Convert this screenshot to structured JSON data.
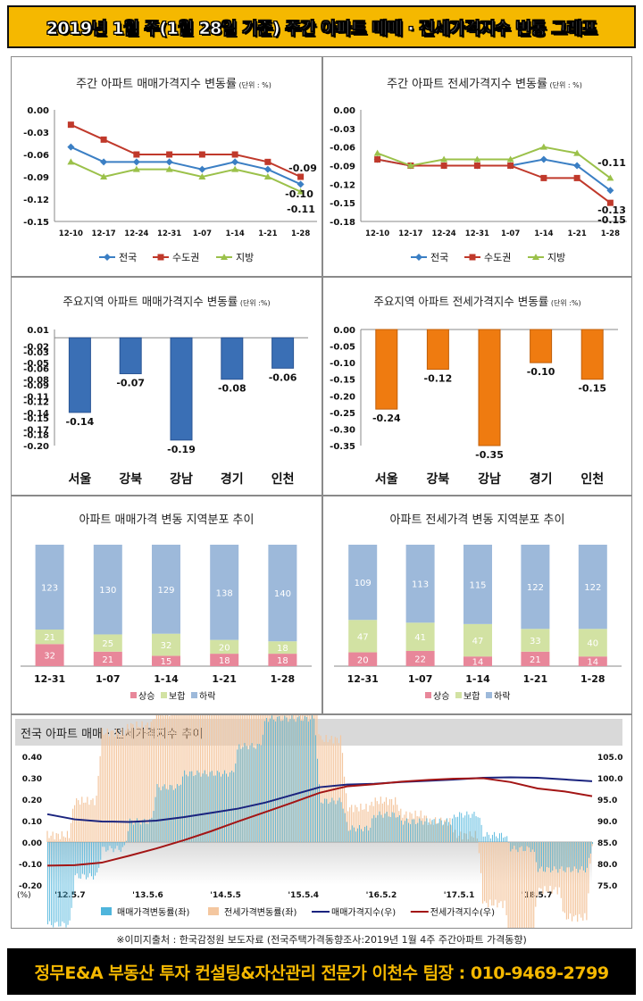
{
  "header": {
    "title": "2019년 1월 주(1월 28일 기준) 주간 아파트 매매 · 전세가격지수 변동 그래프"
  },
  "source_note": "※이미지출처 : 한국감정원 보도자료 (전국주택가격동향조사:2019년 1월  4주 주간아파트 가격동향)",
  "footer": {
    "text": "정무E&A 부동산 투자 컨설팅&자산관리 전문가 이천수 팀장 : 010-9469-2799"
  },
  "colors": {
    "jeonguk": "#3b7fc4",
    "sudo": "#c0392b",
    "jibang": "#9bc14a",
    "blue_bar": "#3a6fb5",
    "orange_bar": "#ef7b10",
    "rise": "#e8879a",
    "flat": "#d2e2a3",
    "fall": "#9db9da"
  },
  "chart_data": [
    {
      "id": "weekly_sale",
      "type": "line",
      "title": "주간 아파트 매매가격지수 변동률",
      "unit_note": "(단위 : %)",
      "categories": [
        "12-10",
        "12-17",
        "12-24",
        "12-31",
        "1-07",
        "1-14",
        "1-21",
        "1-28"
      ],
      "ylim": [
        -0.15,
        0.0
      ],
      "yticks": [
        "0.00",
        "-0.03",
        "-0.06",
        "-0.09",
        "-0.12",
        "-0.15"
      ],
      "series": [
        {
          "name": "전국",
          "values": [
            -0.05,
            -0.07,
            -0.07,
            -0.07,
            -0.08,
            -0.07,
            -0.08,
            -0.1
          ]
        },
        {
          "name": "수도권",
          "values": [
            -0.02,
            -0.04,
            -0.06,
            -0.06,
            -0.06,
            -0.06,
            -0.07,
            -0.09
          ]
        },
        {
          "name": "지방",
          "values": [
            -0.07,
            -0.09,
            -0.08,
            -0.08,
            -0.09,
            -0.08,
            -0.09,
            -0.11
          ]
        }
      ],
      "end_labels": [
        "-0.09",
        "-0.10",
        "-0.11"
      ]
    },
    {
      "id": "weekly_jeonse",
      "type": "line",
      "title": "주간 아파트 전세가격지수 변동률",
      "unit_note": "(단위 : %)",
      "categories": [
        "12-10",
        "12-17",
        "12-24",
        "12-31",
        "1-07",
        "1-14",
        "1-21",
        "1-28"
      ],
      "ylim": [
        -0.18,
        0.0
      ],
      "yticks": [
        "0.00",
        "-0.03",
        "-0.06",
        "-0.09",
        "-0.12",
        "-0.15",
        "-0.18"
      ],
      "series": [
        {
          "name": "전국",
          "values": [
            -0.08,
            -0.09,
            -0.09,
            -0.09,
            -0.09,
            -0.08,
            -0.09,
            -0.13
          ]
        },
        {
          "name": "수도권",
          "values": [
            -0.08,
            -0.09,
            -0.09,
            -0.09,
            -0.09,
            -0.11,
            -0.11,
            -0.15
          ]
        },
        {
          "name": "지방",
          "values": [
            -0.07,
            -0.09,
            -0.08,
            -0.08,
            -0.08,
            -0.06,
            -0.07,
            -0.11
          ]
        }
      ],
      "end_labels": [
        "-0.11",
        "-0.13",
        "-0.15"
      ]
    },
    {
      "id": "region_sale",
      "type": "bar",
      "title": "주요지역 아파트 매매가격지수 변동률",
      "unit_note": "(단위 :%)",
      "categories": [
        "서울",
        "강북",
        "강남",
        "경기",
        "인천"
      ],
      "values": [
        -0.14,
        -0.07,
        -0.19,
        -0.08,
        -0.06
      ],
      "value_labels": [
        "-0.14",
        "-0.07",
        "-0.19",
        "-0.08",
        "-0.06"
      ],
      "ylim": [
        -0.2,
        0.01
      ],
      "yticks": [
        "0.01",
        "-0.02",
        "-0.03",
        "-0.05",
        "-0.06",
        "-0.08",
        "-0.09",
        "-0.11",
        "-0.12",
        "-0.14",
        "-0.15",
        "-0.17",
        "-0.18",
        "-0.20"
      ]
    },
    {
      "id": "region_jeonse",
      "type": "bar",
      "title": "주요지역 아파트 전세가격지수 변동률",
      "unit_note": "(단위 :%)",
      "categories": [
        "서울",
        "강북",
        "강남",
        "경기",
        "인천"
      ],
      "values": [
        -0.24,
        -0.12,
        -0.35,
        -0.1,
        -0.15
      ],
      "value_labels": [
        "-0.24",
        "-0.12",
        "-0.35",
        "-0.10",
        "-0.15"
      ],
      "ylim": [
        -0.35,
        0.0
      ],
      "yticks": [
        "0.00",
        "-0.05",
        "-0.10",
        "-0.15",
        "-0.20",
        "-0.25",
        "-0.30",
        "-0.35"
      ]
    },
    {
      "id": "dist_sale",
      "type": "bar",
      "stacked": true,
      "title": "아파트 매매가격 변동 지역분포 추이",
      "categories": [
        "12-31",
        "1-07",
        "1-14",
        "1-21",
        "1-28"
      ],
      "series": [
        {
          "name": "상승",
          "values": [
            32,
            21,
            15,
            18,
            18
          ],
          "labels": [
            "32",
            "21",
            "15",
            "18",
            "18"
          ]
        },
        {
          "name": "보합",
          "values": [
            21,
            25,
            32,
            20,
            18
          ],
          "labels": [
            "21",
            "25",
            "32",
            "20",
            "18"
          ]
        },
        {
          "name": "하락",
          "values": [
            123,
            130,
            129,
            138,
            140
          ],
          "labels": [
            "123",
            "130",
            "129",
            "138",
            "140"
          ]
        }
      ]
    },
    {
      "id": "dist_jeonse",
      "type": "bar",
      "stacked": true,
      "title": "아파트 전세가격 변동 지역분포 추이",
      "categories": [
        "12-31",
        "1-07",
        "1-14",
        "1-21",
        "1-28"
      ],
      "series": [
        {
          "name": "상승",
          "values": [
            20,
            22,
            14,
            21,
            14
          ],
          "labels": [
            "20",
            "22",
            "14",
            "21",
            "14"
          ]
        },
        {
          "name": "보합",
          "values": [
            47,
            41,
            47,
            33,
            40
          ],
          "labels": [
            "47",
            "41",
            "47",
            "33",
            "40"
          ]
        },
        {
          "name": "하락",
          "values": [
            109,
            113,
            115,
            122,
            122
          ],
          "labels": [
            "109",
            "113",
            "115",
            "122",
            "122"
          ]
        }
      ]
    },
    {
      "id": "national_trend",
      "type": "line",
      "title": "전국 아파트 매매 · 전세가격지수 추이",
      "y_unit": "(%)",
      "x_ticks": [
        "'12.5.7",
        "'13.5.6",
        "'14.5.5",
        "'15.5.4",
        "'16.5.2",
        "'17.5.1",
        "'18.5.7"
      ],
      "ylim_left": [
        -0.2,
        0.4
      ],
      "yticks_left": [
        "0.40",
        "0.30",
        "0.20",
        "0.10",
        "0.00",
        "-0.10",
        "-0.20"
      ],
      "ylim_right": [
        75.0,
        105.0
      ],
      "yticks_right": [
        "105.0",
        "100.0",
        "95.0",
        "90.0",
        "85.0",
        "80.0",
        "75.0"
      ],
      "legend": [
        "매매가격변동률(좌)",
        "전세가격변동률(좌)",
        "매매가격지수(우)",
        "전세가격지수(우)"
      ],
      "series": [
        {
          "name": "매매가격지수(우)",
          "x": [
            0,
            0.05,
            0.1,
            0.15,
            0.2,
            0.25,
            0.3,
            0.35,
            0.4,
            0.45,
            0.5,
            0.55,
            0.6,
            0.65,
            0.7,
            0.75,
            0.8,
            0.85,
            0.9,
            0.95,
            1.0
          ],
          "values": [
            91.5,
            90.3,
            89.8,
            89.7,
            90.0,
            90.8,
            91.8,
            92.8,
            94.2,
            96.0,
            97.8,
            98.4,
            98.6,
            99.0,
            99.3,
            99.6,
            100.0,
            100.1,
            100.0,
            99.6,
            99.2
          ]
        },
        {
          "name": "전세가격지수(우)",
          "x": [
            0,
            0.05,
            0.1,
            0.15,
            0.2,
            0.25,
            0.3,
            0.35,
            0.4,
            0.45,
            0.5,
            0.55,
            0.6,
            0.65,
            0.7,
            0.75,
            0.8,
            0.85,
            0.9,
            0.95,
            1.0
          ],
          "values": [
            79.5,
            79.6,
            80.2,
            81.8,
            83.5,
            85.4,
            87.5,
            89.8,
            92.0,
            94.2,
            96.5,
            98.0,
            98.5,
            99.1,
            99.5,
            99.8,
            99.9,
            99.0,
            97.5,
            96.8,
            95.7
          ]
        }
      ]
    }
  ]
}
